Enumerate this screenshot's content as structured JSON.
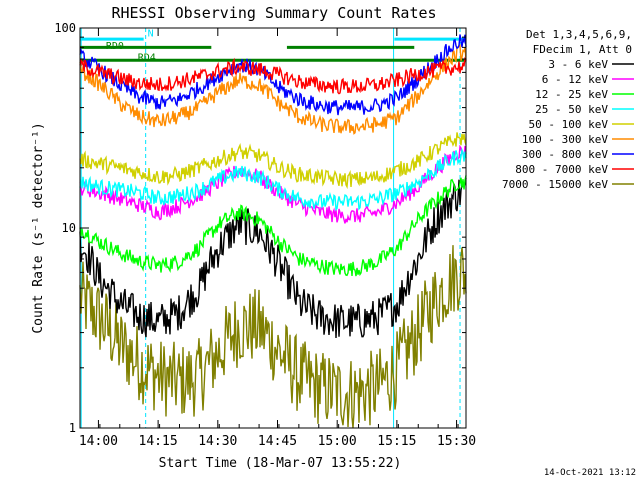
{
  "chart_data": {
    "type": "line",
    "title": "RHESSI Observing Summary Count Rates",
    "xlabel": "Start Time (18-Mar-07 13:55:22)",
    "ylabel": "Count Rate (s⁻¹ detector⁻¹)",
    "x_unit": "minutes since 13:55:22 UT",
    "xlim": [
      0,
      97
    ],
    "ylim": [
      1,
      100
    ],
    "yscale": "log",
    "x_ticks": [
      "14:00",
      "14:15",
      "14:30",
      "14:45",
      "15:00",
      "15:15",
      "15:30"
    ],
    "x_tick_minutes": [
      4.63,
      19.63,
      34.63,
      49.63,
      64.63,
      79.63,
      94.63
    ],
    "y_ticks": [
      "1",
      "10",
      "100"
    ],
    "y_tick_values": [
      1,
      10,
      100
    ],
    "legend": {
      "header": [
        "Det 1,3,4,5,6,9,",
        "FDecim 1, Att 0"
      ],
      "placement": "right"
    },
    "annotations": [
      {
        "text": "N",
        "x": 17,
        "y": 95,
        "color": "#00e5ff"
      },
      {
        "text": "RD0",
        "x": 6.5,
        "y": 82,
        "color": "#008000"
      },
      {
        "text": "RD4",
        "x": 14.5,
        "y": 72,
        "color": "#008000"
      }
    ],
    "overlays": {
      "night_bars": [
        [
          0,
          16
        ],
        [
          79,
          97
        ]
      ],
      "night_bar_color": "#00e5ff",
      "rd0_bars": [
        [
          0,
          33
        ],
        [
          52,
          84
        ]
      ],
      "rd4_level": 69,
      "rd_color": "#008000",
      "vertical_lines": [
        0.3,
        16.5,
        78.8,
        95.5
      ]
    },
    "series": [
      {
        "name": "3 - 6 keV",
        "color": "#000000",
        "x": [
          0,
          5,
          10,
          15,
          20,
          25,
          30,
          35,
          40,
          45,
          50,
          55,
          60,
          65,
          70,
          75,
          80,
          85,
          90,
          95
        ],
        "values": [
          8.5,
          5.5,
          4.2,
          3.6,
          3.4,
          3.8,
          5.0,
          8.0,
          10.5,
          9.5,
          6.5,
          4.2,
          3.6,
          3.4,
          3.4,
          3.6,
          4.2,
          7.0,
          11.5,
          15.0
        ]
      },
      {
        "name": "6 - 12 keV",
        "color": "#ff00ff",
        "x": [
          0,
          5,
          10,
          15,
          20,
          25,
          30,
          35,
          40,
          45,
          50,
          55,
          60,
          65,
          70,
          75,
          80,
          85,
          90,
          95
        ],
        "values": [
          16,
          15,
          14,
          13,
          12,
          13,
          14.5,
          17,
          19.5,
          18,
          15,
          13,
          12,
          11.5,
          11.5,
          12,
          13.5,
          16,
          20,
          24
        ]
      },
      {
        "name": "12 - 25 keV",
        "color": "#00ff00",
        "x": [
          0,
          5,
          10,
          15,
          20,
          25,
          30,
          35,
          40,
          45,
          50,
          55,
          60,
          65,
          70,
          75,
          80,
          85,
          90,
          95
        ],
        "values": [
          10,
          8.5,
          7.5,
          6.8,
          6.5,
          6.8,
          8.0,
          10.5,
          12.0,
          11.0,
          8.5,
          7.0,
          6.5,
          6.2,
          6.3,
          6.8,
          8.0,
          11.0,
          14.0,
          17.0
        ]
      },
      {
        "name": "25 - 50 keV",
        "color": "#00ffff",
        "x": [
          0,
          5,
          10,
          15,
          20,
          25,
          30,
          35,
          40,
          45,
          50,
          55,
          60,
          65,
          70,
          75,
          80,
          85,
          90,
          95
        ],
        "values": [
          17,
          16,
          15.5,
          15,
          14,
          14.5,
          15.5,
          17.5,
          19,
          18,
          15.5,
          14,
          13.5,
          13.5,
          13.5,
          14,
          15,
          17,
          20,
          23
        ]
      },
      {
        "name": "50 - 100 keV",
        "color": "#d0d000",
        "x": [
          0,
          5,
          10,
          15,
          20,
          25,
          30,
          35,
          40,
          45,
          50,
          55,
          60,
          65,
          70,
          75,
          80,
          85,
          90,
          95
        ],
        "values": [
          22,
          21,
          20,
          19,
          18,
          18.5,
          20,
          22,
          24,
          23,
          20,
          18.5,
          18,
          17.5,
          17.5,
          18,
          19.5,
          21.5,
          25,
          28
        ]
      },
      {
        "name": "100 - 300 keV",
        "color": "#ff8c00",
        "x": [
          0,
          5,
          10,
          15,
          20,
          25,
          30,
          35,
          40,
          45,
          50,
          55,
          60,
          65,
          70,
          75,
          80,
          85,
          90,
          95
        ],
        "values": [
          62,
          52,
          42,
          36,
          34,
          36,
          40,
          48,
          55,
          52,
          42,
          36,
          33,
          32,
          32,
          33,
          36,
          46,
          60,
          75
        ]
      },
      {
        "name": "300 - 800 keV",
        "color": "#0000ff",
        "x": [
          0,
          5,
          10,
          15,
          20,
          25,
          30,
          35,
          40,
          45,
          50,
          55,
          60,
          65,
          70,
          75,
          80,
          85,
          90,
          95
        ],
        "values": [
          72,
          62,
          52,
          45,
          42,
          44,
          50,
          58,
          66,
          62,
          50,
          44,
          41,
          40,
          40,
          41,
          45,
          56,
          70,
          85
        ]
      },
      {
        "name": "800 - 7000 keV",
        "color": "#ff0000",
        "x": [
          0,
          5,
          10,
          15,
          20,
          25,
          30,
          35,
          40,
          45,
          50,
          55,
          60,
          65,
          70,
          75,
          80,
          85,
          90,
          95
        ],
        "values": [
          65,
          60,
          56,
          53,
          52,
          54,
          57,
          61,
          64,
          62,
          58,
          54,
          52,
          51,
          51,
          52,
          55,
          59,
          62,
          64
        ]
      },
      {
        "name": "7000 - 15000 keV",
        "color": "#808000",
        "x": [
          0,
          5,
          10,
          15,
          20,
          25,
          30,
          35,
          40,
          45,
          50,
          55,
          60,
          65,
          70,
          75,
          80,
          85,
          90,
          95
        ],
        "values": [
          4.5,
          3.5,
          2.6,
          2.1,
          1.8,
          1.7,
          1.8,
          2.4,
          3.2,
          3.2,
          2.4,
          1.8,
          1.6,
          1.5,
          1.5,
          1.6,
          2.0,
          3.0,
          4.6,
          6.0
        ]
      }
    ]
  },
  "footer": {
    "timestamp": "14-Oct-2021 13:12"
  }
}
